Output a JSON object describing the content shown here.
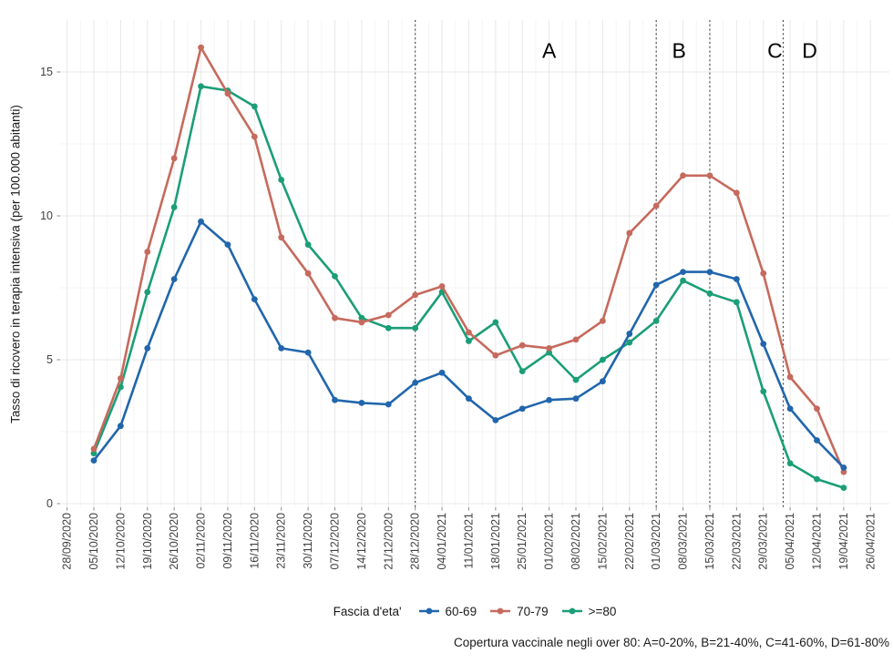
{
  "chart_data": {
    "type": "line",
    "title": "",
    "ylabel": "Tasso di ricovero in terapia intensiva (per 100.000 abitanti)",
    "xlabel": "",
    "yticks": [
      0,
      5,
      10,
      15
    ],
    "yticks_minor": [
      2.5,
      7.5,
      12.5
    ],
    "ylim": [
      0,
      16.8
    ],
    "grid": true,
    "legend_position": "bottom",
    "legend_title": "Fascia d'eta'",
    "x_tick_labels": [
      "28/09/2020",
      "05/10/2020",
      "12/10/2020",
      "19/10/2020",
      "26/10/2020",
      "02/11/2020",
      "09/11/2020",
      "16/11/2020",
      "23/11/2020",
      "30/11/2020",
      "07/12/2020",
      "14/12/2020",
      "21/12/2020",
      "28/12/2020",
      "04/01/2021",
      "11/01/2021",
      "18/01/2021",
      "25/01/2021",
      "01/02/2021",
      "08/02/2021",
      "15/02/2021",
      "22/02/2021",
      "01/03/2021",
      "08/03/2021",
      "15/03/2021",
      "22/03/2021",
      "29/03/2021",
      "05/04/2021",
      "12/04/2021",
      "19/04/2021",
      "26/04/2021"
    ],
    "x_data_dates": [
      "05/10/2020",
      "12/10/2020",
      "19/10/2020",
      "26/10/2020",
      "02/11/2020",
      "09/11/2020",
      "16/11/2020",
      "23/11/2020",
      "30/11/2020",
      "07/12/2020",
      "14/12/2020",
      "21/12/2020",
      "28/12/2020",
      "04/01/2021",
      "11/01/2021",
      "18/01/2021",
      "25/01/2021",
      "01/02/2021",
      "08/02/2021",
      "15/02/2021",
      "22/02/2021",
      "01/03/2021",
      "08/03/2021",
      "15/03/2021",
      "22/03/2021",
      "29/03/2021",
      "05/04/2021",
      "12/04/2021",
      "19/04/2021"
    ],
    "series": [
      {
        "name": "60-69",
        "color": "#2166ac",
        "values": [
          1.5,
          2.7,
          5.4,
          7.8,
          9.8,
          9.0,
          7.1,
          5.4,
          5.25,
          3.6,
          3.5,
          3.45,
          4.2,
          4.55,
          3.65,
          2.9,
          3.3,
          3.6,
          3.65,
          4.25,
          5.9,
          7.6,
          8.05,
          8.05,
          7.8,
          5.55,
          3.3,
          2.2,
          1.25
        ]
      },
      {
        "name": "70-79",
        "color": "#c66a5d",
        "values": [
          1.9,
          4.35,
          8.75,
          12.0,
          15.85,
          14.25,
          12.75,
          9.25,
          8.0,
          6.45,
          6.3,
          6.55,
          7.25,
          7.55,
          5.95,
          5.15,
          5.5,
          5.4,
          5.7,
          6.35,
          9.4,
          10.35,
          11.4,
          11.4,
          10.8,
          8.0,
          4.4,
          3.3,
          1.1
        ]
      },
      {
        "name": ">=80",
        "color": "#1b9e77",
        "values": [
          1.75,
          4.05,
          7.35,
          10.3,
          14.5,
          14.35,
          13.8,
          11.25,
          9.0,
          7.9,
          6.45,
          6.1,
          6.1,
          7.35,
          5.65,
          6.3,
          4.6,
          5.25,
          4.3,
          5.0,
          5.6,
          6.35,
          7.75,
          7.3,
          7.0,
          3.9,
          1.4,
          0.85,
          0.55
        ]
      }
    ],
    "vlines_dashed_x_index": [
      12,
      21,
      23,
      25.74
    ],
    "annotations": [
      {
        "label": "A",
        "x_index": 17.0,
        "y_value": 15.75
      },
      {
        "label": "B",
        "x_index": 21.85,
        "y_value": 15.75
      },
      {
        "label": "C",
        "x_index": 25.43,
        "y_value": 15.75
      },
      {
        "label": "D",
        "x_index": 26.73,
        "y_value": 15.75
      }
    ],
    "caption": "Copertura vaccinale negli over 80: A=0-20%, B=21-40%, C=41-60%, D=61-80%"
  }
}
